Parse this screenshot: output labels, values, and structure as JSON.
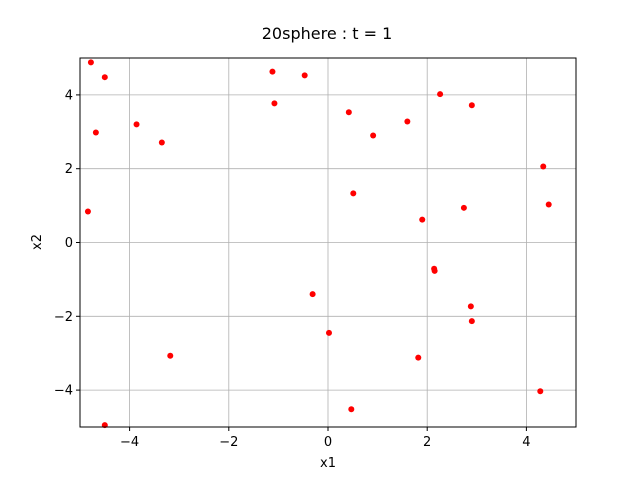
{
  "chart_data": {
    "type": "scatter",
    "title": "20sphere : t =  1",
    "xlabel": "x1",
    "ylabel": "x2",
    "xlim": [
      -5,
      5
    ],
    "ylim": [
      -5,
      5
    ],
    "xticks": [
      -4,
      -2,
      0,
      2,
      4
    ],
    "yticks": [
      -4,
      -2,
      0,
      2,
      4
    ],
    "xtick_labels": [
      "−4",
      "−2",
      "0",
      "2",
      "4"
    ],
    "ytick_labels": [
      "−4",
      "−2",
      "0",
      "2",
      "4"
    ],
    "grid": true,
    "marker_color": "#ff0000",
    "series": [
      {
        "points": [
          {
            "x": -4.78,
            "y": 4.88
          },
          {
            "x": -4.5,
            "y": 4.48
          },
          {
            "x": -4.68,
            "y": 2.98
          },
          {
            "x": -4.84,
            "y": 0.84
          },
          {
            "x": -4.5,
            "y": -4.95
          },
          {
            "x": -3.86,
            "y": 3.2
          },
          {
            "x": -3.35,
            "y": 2.71
          },
          {
            "x": -3.18,
            "y": -3.07
          },
          {
            "x": -1.12,
            "y": 4.63
          },
          {
            "x": -1.08,
            "y": 3.77
          },
          {
            "x": -0.47,
            "y": 4.53
          },
          {
            "x": -0.31,
            "y": -1.4
          },
          {
            "x": 0.02,
            "y": -2.45
          },
          {
            "x": 0.42,
            "y": 3.53
          },
          {
            "x": 0.51,
            "y": 1.33
          },
          {
            "x": 0.47,
            "y": -4.52
          },
          {
            "x": 0.91,
            "y": 2.9
          },
          {
            "x": 1.6,
            "y": 3.28
          },
          {
            "x": 1.82,
            "y": -3.12
          },
          {
            "x": 1.9,
            "y": 0.62
          },
          {
            "x": 2.14,
            "y": -0.71
          },
          {
            "x": 2.15,
            "y": -0.77
          },
          {
            "x": 2.26,
            "y": 4.02
          },
          {
            "x": 2.74,
            "y": 0.94
          },
          {
            "x": 2.9,
            "y": 3.72
          },
          {
            "x": 2.88,
            "y": -1.73
          },
          {
            "x": 2.9,
            "y": -2.13
          },
          {
            "x": 4.28,
            "y": -4.03
          },
          {
            "x": 4.34,
            "y": 2.06
          },
          {
            "x": 4.45,
            "y": 1.03
          }
        ]
      }
    ]
  }
}
